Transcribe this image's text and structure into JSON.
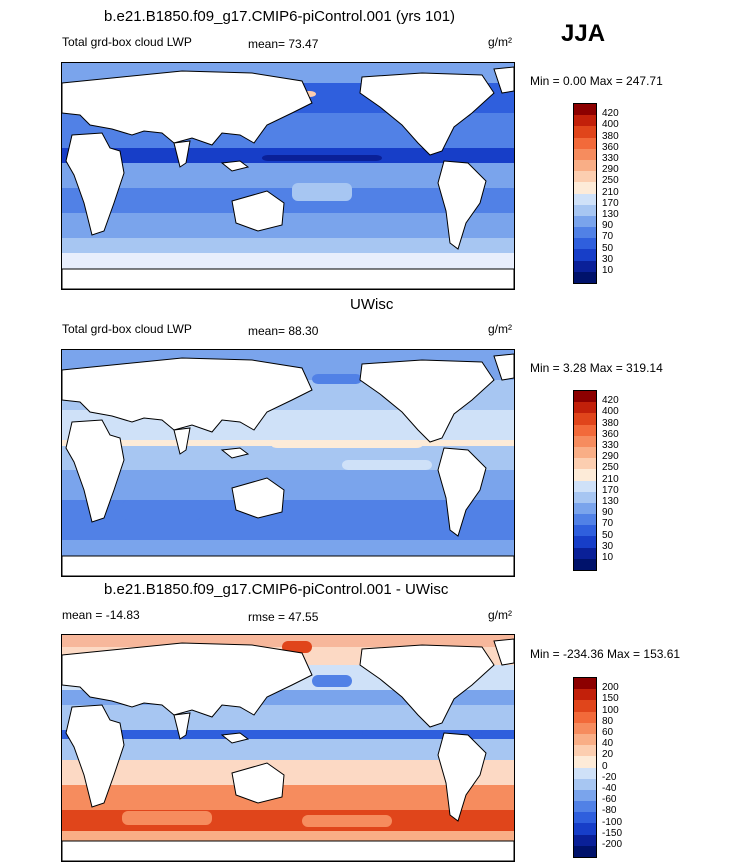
{
  "season": "JJA",
  "units": "g/m²",
  "panels": [
    {
      "title": "b.e21.B1850.f09_g17.CMIP6-piControl.001 (yrs 101)",
      "left_label": "Total grd-box cloud LWP",
      "center_label": "mean=  73.47",
      "minmax": "Min =   0.00 Max = 247.71",
      "levels": [
        "420",
        "400",
        "380",
        "360",
        "330",
        "290",
        "250",
        "210",
        "170",
        "130",
        "90",
        "70",
        "50",
        "30",
        "10"
      ],
      "colors": [
        "#8c0000",
        "#c2200a",
        "#e0451b",
        "#f26a3a",
        "#f68c5e",
        "#f9ae86",
        "#fcceb0",
        "#fdebd8",
        "#cfe1f8",
        "#a7c6f2",
        "#7aa4ec",
        "#5181e6",
        "#2f5fdd",
        "#173ec8",
        "#0a2098",
        "#00126b"
      ]
    },
    {
      "title": "UWisc",
      "left_label": "Total grd-box cloud LWP",
      "center_label": "mean=  88.30",
      "minmax": "Min =   3.28 Max = 319.14",
      "levels": [
        "420",
        "400",
        "380",
        "360",
        "330",
        "290",
        "250",
        "210",
        "170",
        "130",
        "90",
        "70",
        "50",
        "30",
        "10"
      ],
      "colors": [
        "#8c0000",
        "#c2200a",
        "#e0451b",
        "#f26a3a",
        "#f68c5e",
        "#f9ae86",
        "#fcceb0",
        "#fdebd8",
        "#cfe1f8",
        "#a7c6f2",
        "#7aa4ec",
        "#5181e6",
        "#2f5fdd",
        "#173ec8",
        "#0a2098",
        "#00126b"
      ]
    },
    {
      "title": "b.e21.B1850.f09_g17.CMIP6-piControl.001 - UWisc",
      "left_label": "mean = -14.83",
      "center_label": "rmse =  47.55",
      "minmax": "Min = -234.36 Max = 153.61",
      "levels": [
        "200",
        "150",
        "100",
        "80",
        "60",
        "40",
        "20",
        "0",
        "-20",
        "-40",
        "-60",
        "-80",
        "-100",
        "-150",
        "-200"
      ],
      "colors": [
        "#8c0000",
        "#c2200a",
        "#e0451b",
        "#f26a3a",
        "#f68c5e",
        "#f9ae86",
        "#fcceb0",
        "#fdebd8",
        "#cfe1f8",
        "#a7c6f2",
        "#7aa4ec",
        "#5181e6",
        "#2f5fdd",
        "#173ec8",
        "#0a2098",
        "#00126b"
      ]
    }
  ]
}
